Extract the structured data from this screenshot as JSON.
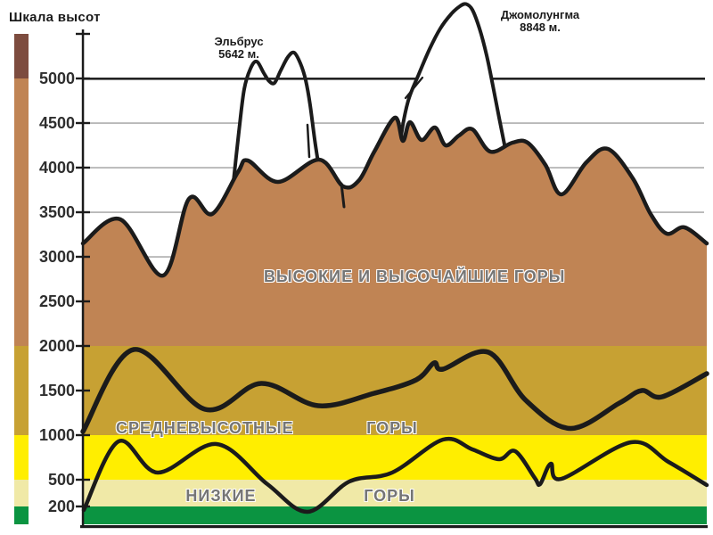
{
  "labels": {
    "scale_title": "Шкала высот",
    "elbrus_name": "Эльбрус",
    "elbrus_height": "5642 м.",
    "everest_name": "Джомолунгма",
    "everest_height": "8848 м.",
    "zone_high": "ВЫСОКИЕ И ВЫСОЧАЙШИЕ ГОРЫ",
    "zone_mid": "СРЕДНЕВЫСОТНЫЕ",
    "zone_mid2": "ГОРЫ",
    "zone_low": "НИЗКИЕ",
    "zone_low2": "ГОРЫ"
  },
  "colors": {
    "highest_brown": "#7d4c3f",
    "mountain_tan": "#c08454",
    "mid_gold": "#c7a133",
    "low_yellow": "#ffee00",
    "foothill_pale": "#f0e9a7",
    "plain_green": "#0b9441",
    "outline_black": "#1b1b1b",
    "grid_gray": "#999999",
    "bold_line": "#222222"
  },
  "chart_data": {
    "type": "area",
    "title": "Шкала высот",
    "y_unit": "м",
    "y_ticks": [
      5000,
      4500,
      4000,
      3500,
      3000,
      2500,
      2000,
      1500,
      1000,
      500,
      200
    ],
    "y_axis_top_m": 5500,
    "gridline_values": [
      4500,
      4000,
      3500,
      3000,
      2500
    ],
    "bold_line_value": 5000,
    "height_zones": [
      {
        "label": "ВЫСОКИЕ И ВЫСОЧАЙШИЕ ГОРЫ",
        "range_m": [
          2000,
          5500
        ],
        "color": "#c08454",
        "band": false
      },
      {
        "label": "СРЕДНЕВЫСОТНЫЕ ГОРЫ",
        "range_m": [
          1000,
          2000
        ],
        "color": "#c7a133",
        "band": true
      },
      {
        "label": "НИЗКИЕ ГОРЫ",
        "range_m": [
          500,
          1000
        ],
        "color": "#ffee00",
        "band": true
      },
      {
        "label": "",
        "range_m": [
          200,
          500
        ],
        "color": "#f0e9a7",
        "band": true
      },
      {
        "label": "",
        "range_m": [
          0,
          200
        ],
        "color": "#0b9441",
        "band": true
      }
    ],
    "scale_bar_segments": [
      {
        "range_m": [
          5000,
          5500
        ],
        "color": "#7d4c3f"
      },
      {
        "range_m": [
          2000,
          5000
        ],
        "color": "#c08454"
      },
      {
        "range_m": [
          1000,
          2000
        ],
        "color": "#c7a133"
      },
      {
        "range_m": [
          500,
          1000
        ],
        "color": "#ffee00"
      },
      {
        "range_m": [
          200,
          500
        ],
        "color": "#f0e9a7"
      },
      {
        "range_m": [
          0,
          200
        ],
        "color": "#0b9441"
      }
    ],
    "named_peaks": [
      {
        "name": "Эльбрус",
        "elevation_m": 5642
      },
      {
        "name": "Джомолунгма",
        "elevation_m": 8848
      }
    ],
    "profiles": {
      "main_ridge": [
        [
          93,
          3150
        ],
        [
          135,
          3420
        ],
        [
          183,
          2790
        ],
        [
          212,
          3650
        ],
        [
          238,
          3480
        ],
        [
          267,
          3950
        ],
        [
          278,
          4080
        ],
        [
          312,
          3840
        ],
        [
          358,
          4090
        ],
        [
          385,
          3790
        ],
        [
          403,
          3860
        ],
        [
          420,
          4180
        ],
        [
          443,
          4560
        ],
        [
          452,
          4300
        ],
        [
          460,
          4510
        ],
        [
          473,
          4310
        ],
        [
          488,
          4450
        ],
        [
          500,
          4250
        ],
        [
          515,
          4360
        ],
        [
          530,
          4430
        ],
        [
          550,
          4180
        ],
        [
          575,
          4280
        ],
        [
          592,
          4280
        ],
        [
          612,
          4030
        ],
        [
          630,
          3700
        ],
        [
          658,
          4060
        ],
        [
          682,
          4210
        ],
        [
          710,
          3880
        ],
        [
          730,
          3480
        ],
        [
          748,
          3260
        ],
        [
          768,
          3330
        ],
        [
          793,
          3150
        ]
      ],
      "mid_ridge": [
        [
          93,
          1040
        ],
        [
          150,
          1960
        ],
        [
          230,
          1290
        ],
        [
          293,
          1580
        ],
        [
          357,
          1330
        ],
        [
          420,
          1470
        ],
        [
          467,
          1620
        ],
        [
          487,
          1810
        ],
        [
          497,
          1740
        ],
        [
          548,
          1930
        ],
        [
          590,
          1390
        ],
        [
          640,
          1075
        ],
        [
          695,
          1360
        ],
        [
          720,
          1500
        ],
        [
          743,
          1430
        ],
        [
          793,
          1690
        ]
      ],
      "low_ridge": [
        [
          94,
          160
        ],
        [
          133,
          930
        ],
        [
          177,
          580
        ],
        [
          243,
          900
        ],
        [
          300,
          450
        ],
        [
          345,
          140
        ],
        [
          392,
          480
        ],
        [
          440,
          580
        ],
        [
          497,
          950
        ],
        [
          530,
          840
        ],
        [
          560,
          730
        ],
        [
          578,
          820
        ],
        [
          600,
          520
        ],
        [
          606,
          450
        ],
        [
          618,
          680
        ],
        [
          630,
          510
        ],
        [
          708,
          920
        ],
        [
          750,
          700
        ],
        [
          793,
          440
        ]
      ],
      "elbrus_outline": [
        [
          261,
          3750
        ],
        [
          268,
          4400
        ],
        [
          274,
          4880
        ],
        [
          281,
          5110
        ],
        [
          288,
          5190
        ],
        [
          296,
          5060
        ],
        [
          302,
          4970
        ],
        [
          308,
          4950
        ],
        [
          315,
          5090
        ],
        [
          323,
          5240
        ],
        [
          330,
          5290
        ],
        [
          337,
          5170
        ],
        [
          343,
          4980
        ],
        [
          348,
          4700
        ],
        [
          354,
          4250
        ],
        [
          360,
          3900
        ],
        [
          367,
          3700
        ]
      ],
      "everest_outline": [
        [
          444,
          3800
        ],
        [
          450,
          4350
        ],
        [
          458,
          4750
        ],
        [
          470,
          5050
        ],
        [
          482,
          5330
        ],
        [
          494,
          5560
        ],
        [
          506,
          5720
        ],
        [
          516,
          5810
        ],
        [
          523,
          5835
        ],
        [
          530,
          5770
        ],
        [
          538,
          5560
        ],
        [
          546,
          5260
        ],
        [
          553,
          4920
        ],
        [
          560,
          4560
        ],
        [
          566,
          4260
        ],
        [
          572,
          3960
        ],
        [
          578,
          3650
        ]
      ],
      "elbrus_couloir": [
        [
          345,
          4480
        ],
        [
          347,
          4120
        ]
      ],
      "everest_couloir": [
        [
          455,
          4780
        ],
        [
          474,
          5010
        ]
      ],
      "crevice": [
        [
          383,
          3820
        ],
        [
          386,
          3560
        ]
      ]
    }
  }
}
